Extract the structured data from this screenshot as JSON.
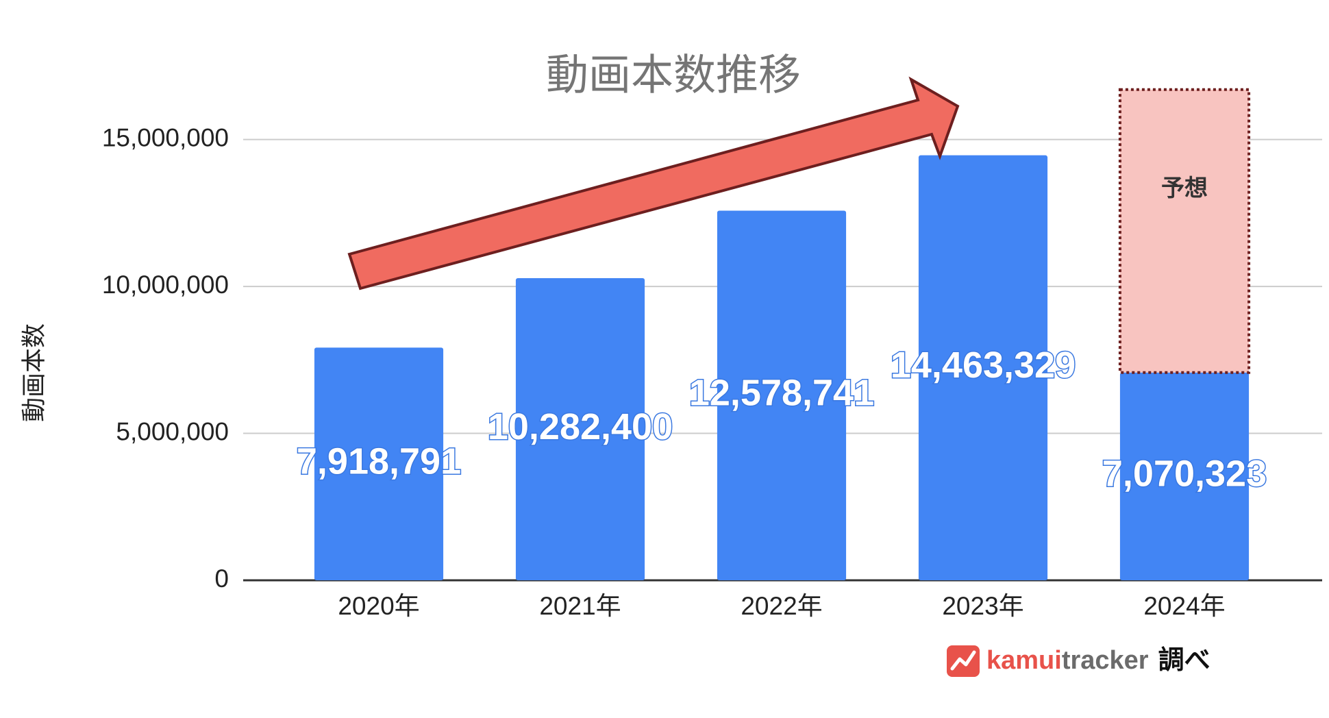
{
  "chart_data": {
    "type": "bar",
    "title": "動画本数推移",
    "y_label": "動画本数",
    "categories": [
      "2020年",
      "2021年",
      "2022年",
      "2023年",
      "2024年"
    ],
    "values": [
      7918791,
      10282400,
      12578741,
      14463329,
      7070323
    ],
    "value_labels": [
      "7,918,791",
      "10,282,400",
      "12,578,741",
      "14,463,329",
      "7,070,323"
    ],
    "color": "#4285f4",
    "forecast_values": [
      null,
      null,
      null,
      null,
      9630000
    ],
    "forecast_label": "予想",
    "forecast_color": "#f8c4c0",
    "ylim": [
      0,
      18000000
    ],
    "yticks": [
      0,
      {
        "value": 5000000,
        "label": "5,000,000"
      },
      {
        "value": 10000000,
        "label": "10,000,000"
      },
      {
        "value": 15000000,
        "label": "15,000,000"
      }
    ],
    "grid": true,
    "source": {
      "brand_a": "kamui",
      "brand_b": "tracker",
      "suffix": "調べ"
    }
  }
}
